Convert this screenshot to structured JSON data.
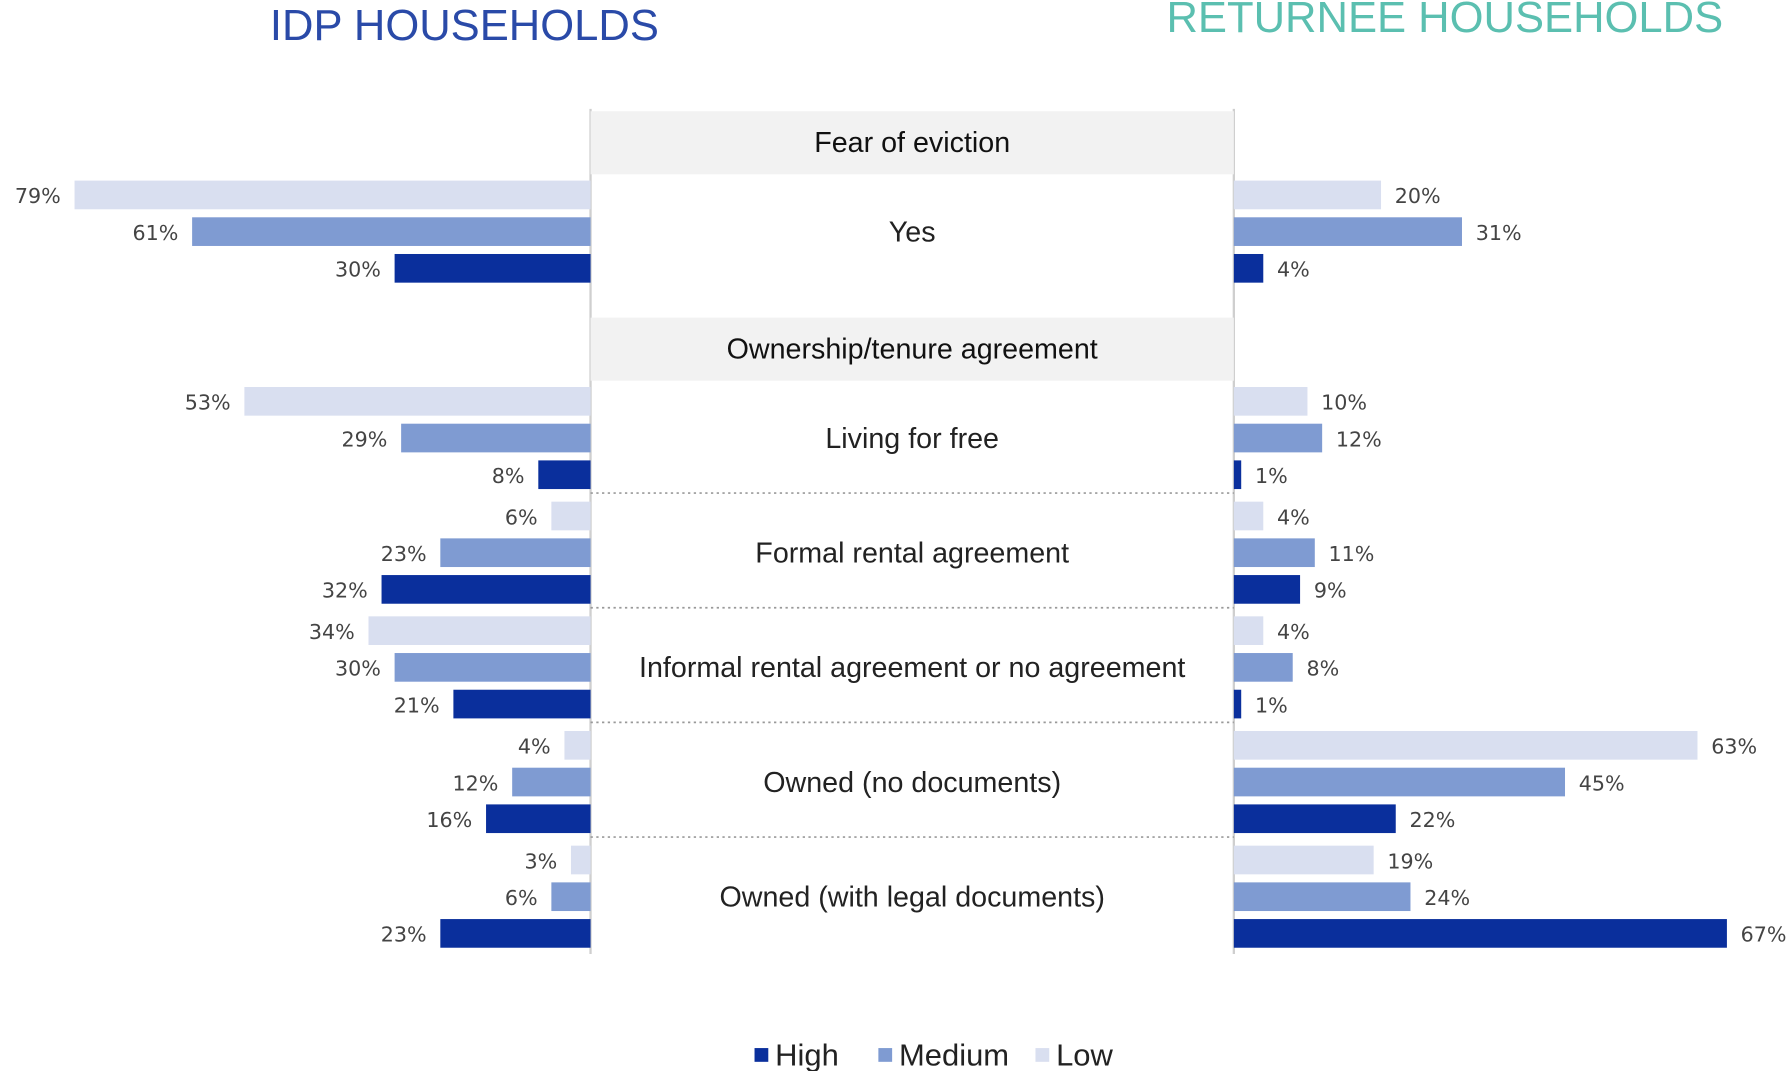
{
  "chart_data": [
    {
      "type": "bar",
      "orientation": "horizontal",
      "direction": "left",
      "title": "IDP HOUSEHOLDS",
      "title_color": "#2a4aa8",
      "xlim": [
        0,
        80
      ],
      "series": [
        {
          "name": "Low",
          "color": "#d9dff0",
          "values": [
            79,
            53,
            6,
            34,
            4,
            3
          ],
          "value_labels": [
            "79%",
            "53%",
            "6%",
            "34%",
            "4%",
            "3%"
          ]
        },
        {
          "name": "Medium",
          "color": "#7f9bd2",
          "values": [
            61,
            29,
            23,
            30,
            12,
            6
          ],
          "value_labels": [
            "61%",
            "29%",
            "23%",
            "30%",
            "12%",
            "6%"
          ]
        },
        {
          "name": "High",
          "color": "#0a2f9c",
          "values": [
            30,
            8,
            32,
            21,
            16,
            23
          ],
          "value_labels": [
            "30%",
            "8%",
            "32%",
            "21%",
            "16%",
            "23%"
          ]
        }
      ]
    },
    {
      "type": "bar",
      "orientation": "horizontal",
      "direction": "right",
      "title": "RETURNEE HOUSEHOLDS",
      "title_color": "#5bbfb0",
      "xlim": [
        0,
        70
      ],
      "series": [
        {
          "color": "#d9dff0",
          "values": [
            20,
            10,
            4,
            4,
            63,
            19
          ],
          "value_labels": [
            "20%",
            "10%",
            "4%",
            "4%",
            "63%",
            "19%"
          ]
        },
        {
          "color": "#7f9bd2",
          "values": [
            31,
            12,
            11,
            8,
            45,
            24
          ],
          "value_labels": [
            "31%",
            "12%",
            "11%",
            "8%",
            "45%",
            "24%"
          ]
        },
        {
          "color": "#0a2f9c",
          "values": [
            4,
            1,
            9,
            1,
            22,
            67
          ],
          "value_labels": [
            "4%",
            "1%",
            "9%",
            "1%",
            "22%",
            "67%"
          ]
        }
      ]
    }
  ],
  "sections": [
    {
      "title": "Fear of eviction",
      "categories": [
        "Yes"
      ]
    },
    {
      "title": "Ownership/tenure agreement",
      "categories": [
        "Living for free",
        "Formal rental agreement",
        "Informal rental agreement or no agreement",
        "Owned (no documents)",
        "Owned (with legal documents)"
      ]
    }
  ]
}
